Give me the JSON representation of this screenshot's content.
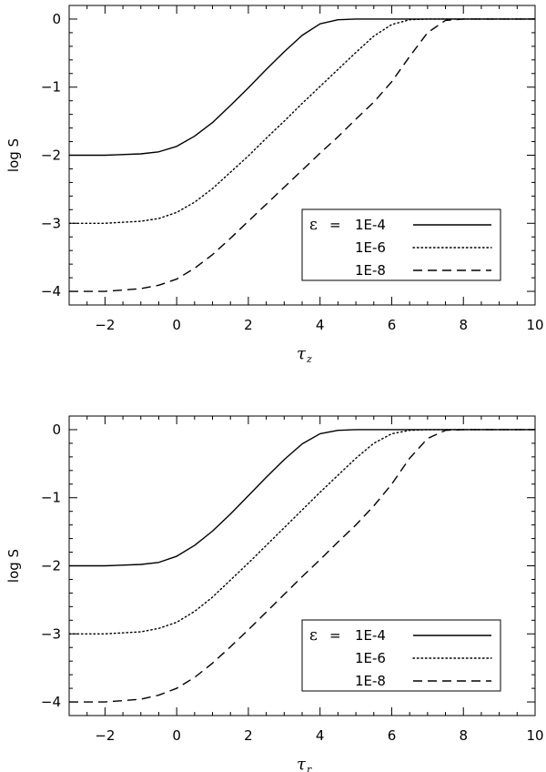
{
  "chart_data": [
    {
      "type": "line",
      "ylabel": "log S",
      "xlabel_symbol": "τ",
      "xlabel_subscript": "z",
      "xlim": [
        -3,
        10
      ],
      "ylim": [
        -4.2,
        0.2
      ],
      "xticks": [
        -2,
        0,
        2,
        4,
        6,
        8,
        10
      ],
      "yticks": [
        -4,
        -3,
        -2,
        -1,
        0
      ],
      "grid": false,
      "legend_position": "lower-right",
      "legend_symbol": "ε",
      "legend_eq": "=",
      "series": [
        {
          "name": "1E-4",
          "style": "solid",
          "x": [
            -3,
            -2,
            -1,
            -0.5,
            0,
            0.5,
            1,
            1.5,
            2,
            2.5,
            3,
            3.5,
            4,
            4.5,
            5,
            6,
            8,
            10
          ],
          "y": [
            -2,
            -2,
            -1.98,
            -1.95,
            -1.87,
            -1.72,
            -1.52,
            -1.27,
            -1.01,
            -0.74,
            -0.48,
            -0.24,
            -0.07,
            -0.01,
            0,
            0,
            0,
            0
          ]
        },
        {
          "name": "1E-6",
          "style": "dotted",
          "x": [
            -3,
            -2,
            -1,
            -0.5,
            0,
            0.5,
            1,
            1.5,
            2,
            2.5,
            3,
            3.5,
            4,
            4.5,
            5,
            5.5,
            6,
            6.5,
            7,
            8,
            10
          ],
          "y": [
            -3,
            -3,
            -2.97,
            -2.93,
            -2.84,
            -2.69,
            -2.49,
            -2.25,
            -2.01,
            -1.75,
            -1.5,
            -1.24,
            -0.99,
            -0.74,
            -0.49,
            -0.25,
            -0.08,
            -0.01,
            0,
            0,
            0
          ]
        },
        {
          "name": "1E-8",
          "style": "dashed",
          "x": [
            -3,
            -2,
            -1,
            -0.5,
            0,
            0.5,
            1,
            1.5,
            2,
            2.5,
            3,
            3.5,
            4,
            4.5,
            5,
            5.5,
            6,
            6.5,
            7,
            7.5,
            8,
            10
          ],
          "y": [
            -4,
            -4,
            -3.96,
            -3.91,
            -3.82,
            -3.66,
            -3.46,
            -3.22,
            -2.97,
            -2.72,
            -2.47,
            -2.22,
            -1.97,
            -1.73,
            -1.47,
            -1.22,
            -0.92,
            -0.55,
            -0.2,
            -0.02,
            0,
            0
          ]
        }
      ]
    },
    {
      "type": "line",
      "ylabel": "log S",
      "xlabel_symbol": "τ",
      "xlabel_subscript": "r",
      "xlim": [
        -3,
        10
      ],
      "ylim": [
        -4.2,
        0.2
      ],
      "xticks": [
        -2,
        0,
        2,
        4,
        6,
        8,
        10
      ],
      "yticks": [
        -4,
        -3,
        -2,
        -1,
        0
      ],
      "grid": false,
      "legend_position": "lower-right",
      "legend_symbol": "ε",
      "legend_eq": "=",
      "series": [
        {
          "name": "1E-4",
          "style": "solid",
          "x": [
            -3,
            -2,
            -1,
            -0.5,
            0,
            0.5,
            1,
            1.5,
            2,
            2.5,
            3,
            3.5,
            4,
            4.5,
            5,
            6,
            8,
            10
          ],
          "y": [
            -2,
            -2,
            -1.98,
            -1.95,
            -1.86,
            -1.7,
            -1.49,
            -1.24,
            -0.97,
            -0.7,
            -0.44,
            -0.21,
            -0.06,
            -0.01,
            0,
            0,
            0,
            0
          ]
        },
        {
          "name": "1E-6",
          "style": "dotted",
          "x": [
            -3,
            -2,
            -1,
            -0.5,
            0,
            0.5,
            1,
            1.5,
            2,
            2.5,
            3,
            3.5,
            4,
            4.5,
            5,
            5.5,
            6,
            6.5,
            7,
            8,
            10
          ],
          "y": [
            -3,
            -3,
            -2.97,
            -2.92,
            -2.83,
            -2.67,
            -2.46,
            -2.21,
            -1.96,
            -1.7,
            -1.44,
            -1.18,
            -0.92,
            -0.67,
            -0.42,
            -0.2,
            -0.06,
            -0.01,
            0,
            0,
            0
          ]
        },
        {
          "name": "1E-8",
          "style": "dashed",
          "x": [
            -3,
            -2,
            -1,
            -0.5,
            0,
            0.5,
            1,
            1.5,
            2,
            2.5,
            3,
            3.5,
            4,
            4.5,
            5,
            5.5,
            6,
            6.5,
            7,
            7.5,
            8,
            10
          ],
          "y": [
            -4,
            -4,
            -3.96,
            -3.9,
            -3.8,
            -3.64,
            -3.43,
            -3.19,
            -2.94,
            -2.68,
            -2.42,
            -2.16,
            -1.91,
            -1.65,
            -1.4,
            -1.12,
            -0.8,
            -0.42,
            -0.13,
            -0.01,
            0,
            0
          ]
        }
      ]
    }
  ]
}
